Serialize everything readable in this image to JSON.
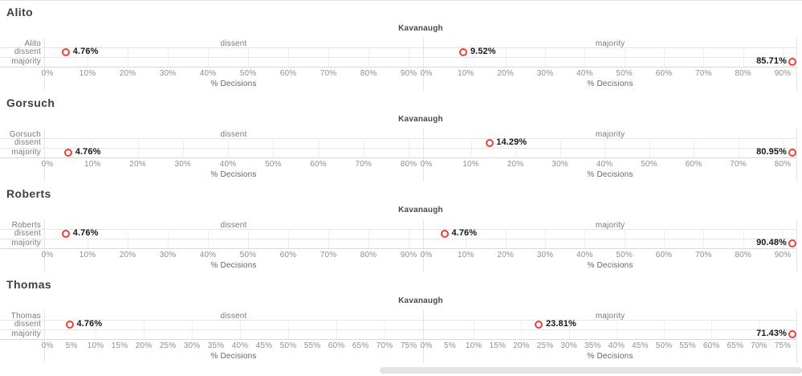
{
  "colors": {
    "accent": "#e8413a",
    "grid": "#e5e5e5",
    "axis": "#d8d8d8",
    "tick_text": "#8f8f8f",
    "muted_text": "#7a7a7a",
    "title_text": "#3f3f3f",
    "point_label_text": "#181818",
    "scrollbar": "#e3e3e3"
  },
  "chart_data": [
    {
      "type": "scatter",
      "title": "Alito",
      "col_header": "Kavanaugh",
      "row_header": "Alito",
      "facets": [
        "dissent",
        "majority"
      ],
      "rows": [
        "dissent",
        "majority"
      ],
      "xlabel": "% Decisions",
      "xlim": [
        0,
        90
      ],
      "xtick_step": 10,
      "tick_suffix": "%",
      "points": [
        {
          "facet": "dissent",
          "row": "dissent",
          "value": 4.76,
          "label": "4.76%"
        },
        {
          "facet": "majority",
          "row": "dissent",
          "value": 9.52,
          "label": "9.52%"
        },
        {
          "facet": "majority",
          "row": "majority",
          "value": 85.71,
          "label": "85.71%"
        }
      ]
    },
    {
      "type": "scatter",
      "title": "Gorsuch",
      "col_header": "Kavanaugh",
      "row_header": "Gorsuch",
      "facets": [
        "dissent",
        "majority"
      ],
      "rows": [
        "dissent",
        "majority"
      ],
      "xlabel": "% Decisions",
      "xlim": [
        0,
        80
      ],
      "xtick_step": 10,
      "tick_suffix": "%",
      "points": [
        {
          "facet": "dissent",
          "row": "majority",
          "value": 4.76,
          "label": "4.76%"
        },
        {
          "facet": "majority",
          "row": "dissent",
          "value": 14.29,
          "label": "14.29%"
        },
        {
          "facet": "majority",
          "row": "majority",
          "value": 80.95,
          "label": "80.95%"
        }
      ]
    },
    {
      "type": "scatter",
      "title": "Roberts",
      "col_header": "Kavanaugh",
      "row_header": "Roberts",
      "facets": [
        "dissent",
        "majority"
      ],
      "rows": [
        "dissent",
        "majority"
      ],
      "xlabel": "% Decisions",
      "xlim": [
        0,
        90
      ],
      "xtick_step": 10,
      "tick_suffix": "%",
      "points": [
        {
          "facet": "dissent",
          "row": "dissent",
          "value": 4.76,
          "label": "4.76%"
        },
        {
          "facet": "majority",
          "row": "dissent",
          "value": 4.76,
          "label": "4.76%"
        },
        {
          "facet": "majority",
          "row": "majority",
          "value": 90.48,
          "label": "90.48%"
        }
      ]
    },
    {
      "type": "scatter",
      "title": "Thomas",
      "col_header": "Kavanaugh",
      "row_header": "Thomas",
      "facets": [
        "dissent",
        "majority"
      ],
      "rows": [
        "dissent",
        "majority"
      ],
      "xlabel": "% Decisions",
      "xlim": [
        0,
        75
      ],
      "xtick_step": 5,
      "tick_suffix": "%",
      "points": [
        {
          "facet": "dissent",
          "row": "dissent",
          "value": 4.76,
          "label": "4.76%"
        },
        {
          "facet": "majority",
          "row": "dissent",
          "value": 23.81,
          "label": "23.81%"
        },
        {
          "facet": "majority",
          "row": "majority",
          "value": 71.43,
          "label": "71.43%"
        }
      ]
    }
  ]
}
